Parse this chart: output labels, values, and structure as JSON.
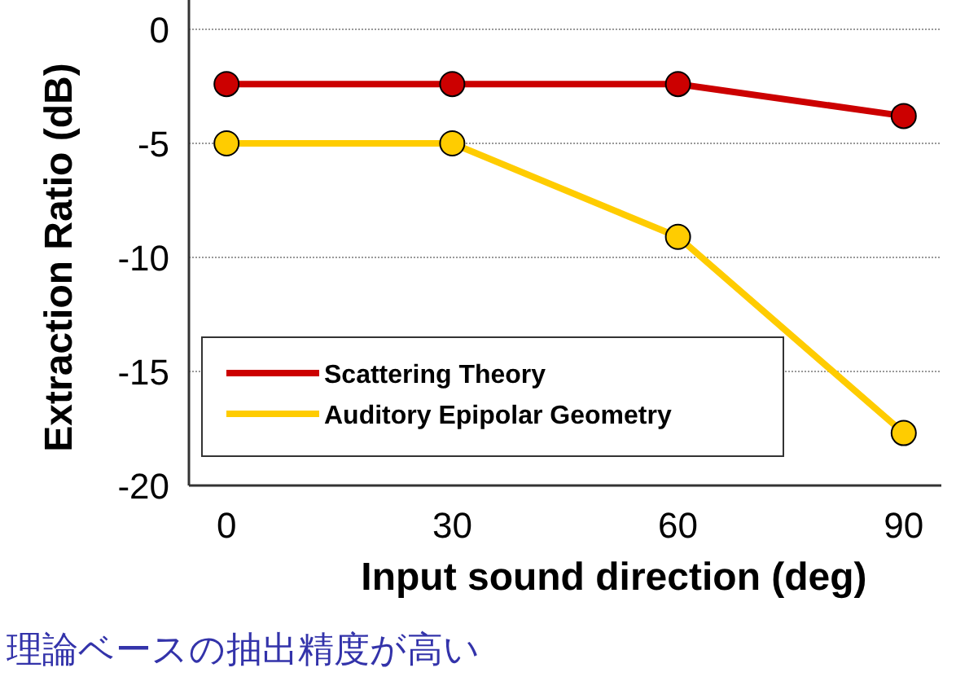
{
  "chart_data": {
    "type": "line",
    "xlabel": "Input sound direction (deg)",
    "ylabel": "Extraction Ratio (dB)",
    "x": [
      0,
      30,
      60,
      90
    ],
    "series": [
      {
        "name": "Scattering Theory",
        "color": "#cc0000",
        "values": [
          -2.4,
          -2.4,
          -2.4,
          -3.8
        ]
      },
      {
        "name": "Auditory Epipolar Geometry",
        "color": "#ffcc00",
        "values": [
          -5,
          -5,
          -9.1,
          -17.7
        ]
      }
    ],
    "xlim": [
      -5,
      95
    ],
    "ylim": [
      -20,
      0
    ],
    "xticks": [
      0,
      30,
      60,
      90
    ],
    "yticks": [
      0,
      -5,
      -10,
      -15,
      -20
    ],
    "grid": "y",
    "legend": "bottom left",
    "marker": "circle",
    "line_style": "solid",
    "annotations": [
      "理論ベースの抽出精度が高い"
    ]
  }
}
